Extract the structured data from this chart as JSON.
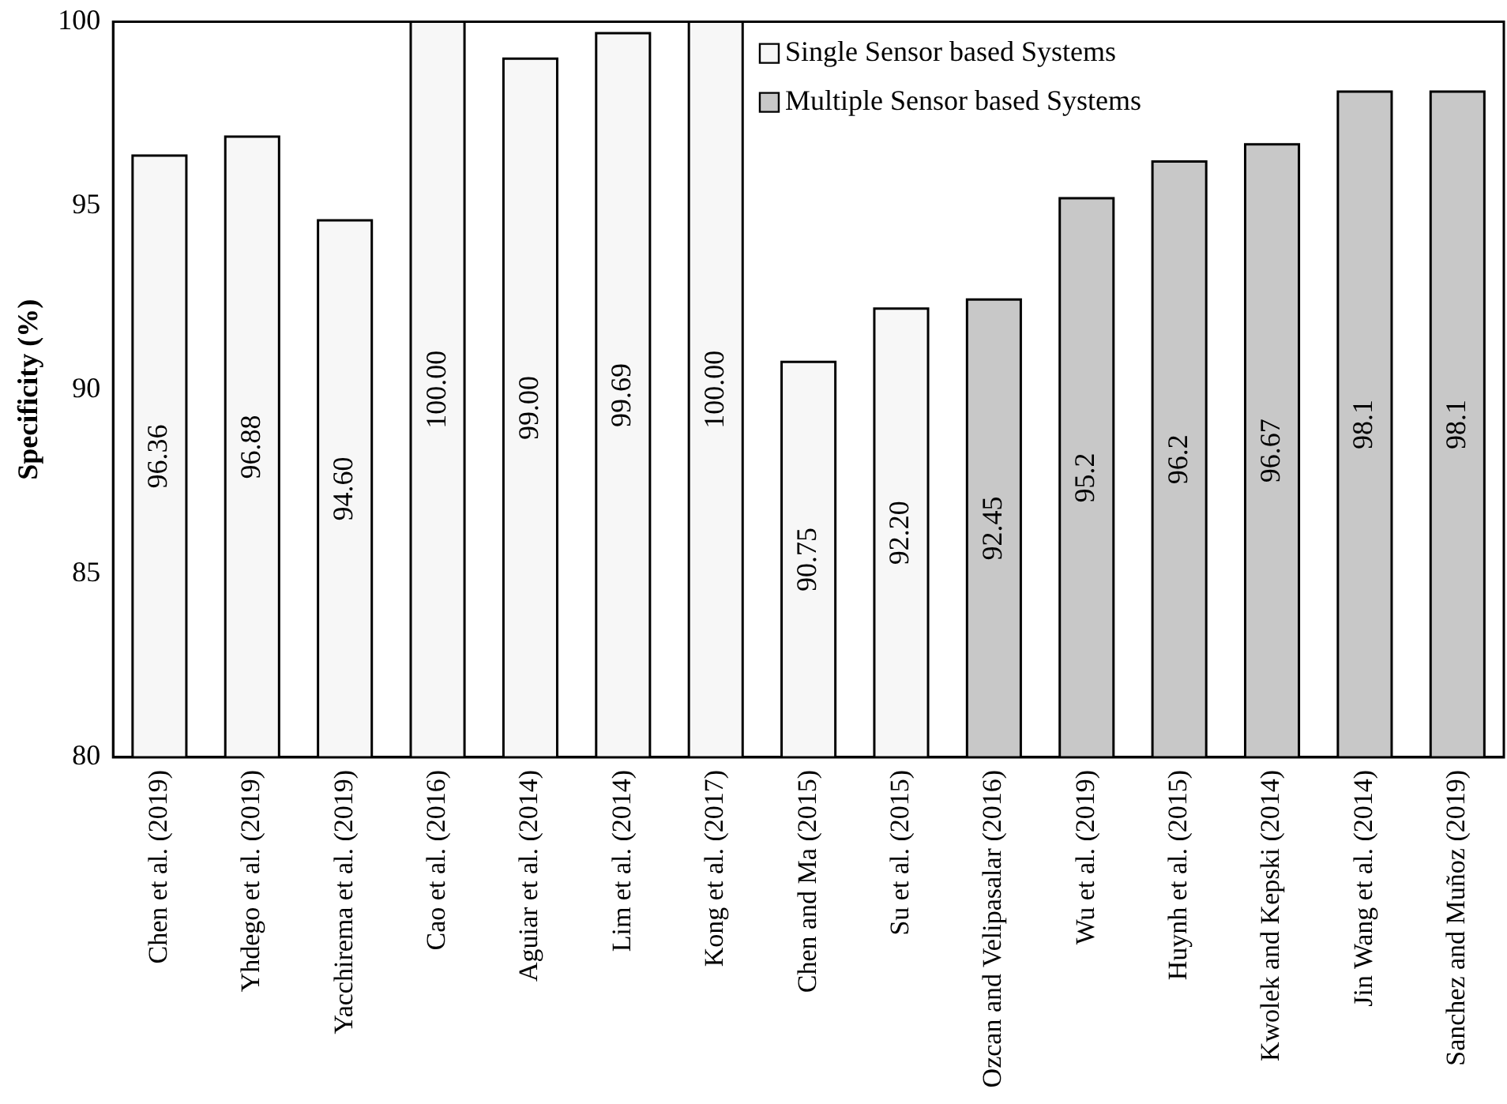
{
  "chart_data": {
    "type": "bar",
    "ylabel": "Specificity (%)",
    "categories": [
      "Chen et al. (2019)",
      "Yhdego et al. (2019)",
      "Yacchirema et al. (2019)",
      "Cao et al. (2016)",
      "Aguiar et al. (2014)",
      "Lim et al. (2014)",
      "Kong et al. (2017)",
      "Chen and Ma (2015)",
      "Su et al. (2015)",
      "Ozcan and Velipasalar (2016)",
      "Wu et al. (2019)",
      "Huynh et al. (2015)",
      "Kwolek and Kepski (2014)",
      "Jin Wang et al. (2014)",
      "Sanchez and Muñoz (2019)"
    ],
    "series": [
      {
        "name": "Single Sensor based Systems",
        "color": "#f7f7f7",
        "values": [
          96.36,
          96.88,
          94.6,
          100,
          99,
          99.69,
          100,
          90.75,
          92.2,
          null,
          null,
          null,
          null,
          null,
          null
        ],
        "value_labels": [
          "96.36",
          "96.88",
          "94.60",
          "100.00",
          "99.00",
          "99.69",
          "100.00",
          "90.75",
          "92.20",
          null,
          null,
          null,
          null,
          null,
          null
        ]
      },
      {
        "name": "Multiple Sensor based Systems",
        "color": "#c8c8c8",
        "values": [
          null,
          null,
          null,
          null,
          null,
          null,
          null,
          null,
          null,
          92.45,
          95.2,
          96.2,
          96.67,
          98.1,
          98.1
        ],
        "value_labels": [
          null,
          null,
          null,
          null,
          null,
          null,
          null,
          null,
          null,
          "92.45",
          "95.2",
          "96.2",
          "96.67",
          "98.1",
          "98.1"
        ]
      }
    ],
    "ylim": [
      80,
      100
    ],
    "yticks": [
      80,
      85,
      90,
      95,
      100
    ],
    "grid": false,
    "legend": "top right"
  }
}
